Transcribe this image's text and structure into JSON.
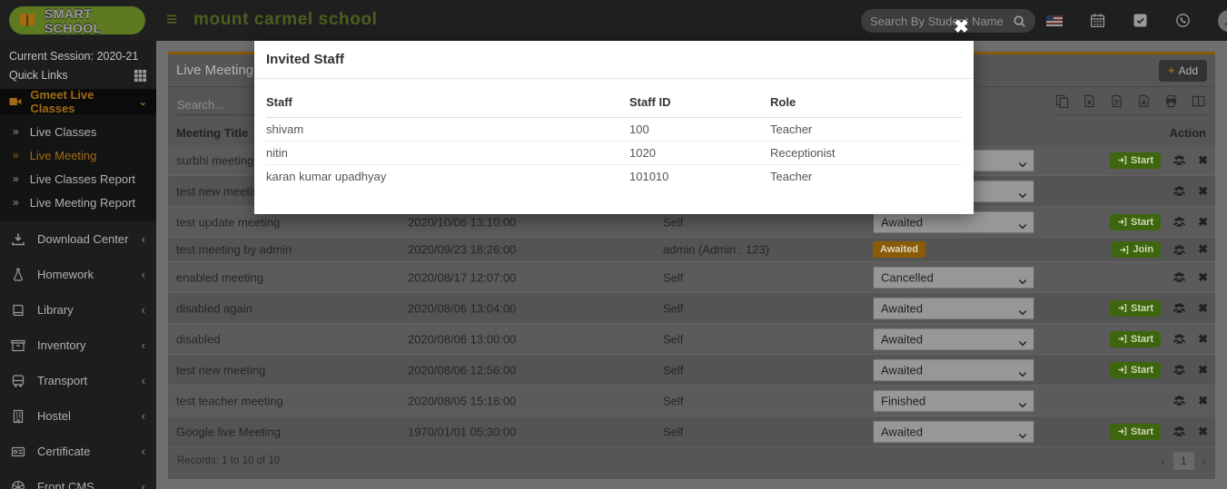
{
  "header": {
    "logo_text": "SMART SCHOOL",
    "school_name": "mount carmel school",
    "search_placeholder": "Search By Student Name",
    "icons": [
      "us-flag-icon",
      "calendar-icon",
      "tasks-icon",
      "whatsapp-icon",
      "user-avatar-icon"
    ]
  },
  "sidebar": {
    "session_label": "Current Session: 2020-21",
    "quick_links_label": "Quick Links",
    "active_menu": {
      "label": "Gmeet Live Classes",
      "icon": "video-icon",
      "children": [
        {
          "label": "Live Classes",
          "active": false
        },
        {
          "label": "Live Meeting",
          "active": true
        },
        {
          "label": "Live Classes Report",
          "active": false
        },
        {
          "label": "Live Meeting Report",
          "active": false
        }
      ]
    },
    "menu": [
      {
        "label": "Download Center",
        "icon": "download-icon"
      },
      {
        "label": "Homework",
        "icon": "flask-icon"
      },
      {
        "label": "Library",
        "icon": "book-icon"
      },
      {
        "label": "Inventory",
        "icon": "inventory-icon"
      },
      {
        "label": "Transport",
        "icon": "bus-icon"
      },
      {
        "label": "Hostel",
        "icon": "building-icon"
      },
      {
        "label": "Certificate",
        "icon": "certificate-icon"
      },
      {
        "label": "Front CMS",
        "icon": "globe-icon"
      }
    ]
  },
  "page": {
    "title": "Live Meeting",
    "add_button_label": "Add",
    "search_placeholder": "Search...",
    "export_icons": [
      "copy-icon",
      "excel-icon",
      "csv-icon",
      "pdf-icon",
      "print-icon",
      "columns-icon"
    ],
    "table": {
      "header_title": "Meeting Title",
      "header_action": "Action",
      "rows": [
        {
          "title": "surbhi meeting",
          "date": "",
          "created_by": "",
          "status": "",
          "status_kind": "select",
          "buttons": [
            "start",
            "users",
            "close"
          ],
          "start_label": "Start"
        },
        {
          "title": "test new meeting",
          "date": "",
          "created_by": "",
          "status": "",
          "status_kind": "select",
          "buttons": [
            "users",
            "close"
          ],
          "start_label": ""
        },
        {
          "title": "test update meeting",
          "date": "2020/10/06 13:10:00",
          "created_by": "Self",
          "status": "Awaited",
          "status_kind": "select",
          "buttons": [
            "start",
            "users",
            "close"
          ],
          "start_label": "Start"
        },
        {
          "title": "test meeting by admin",
          "date": "2020/09/23 18:26:00",
          "created_by": "admin (Admin : 123)",
          "status": "Awaited",
          "status_kind": "badge",
          "buttons": [
            "start",
            "users",
            "close"
          ],
          "start_label": "Join"
        },
        {
          "title": "enabled meeting",
          "date": "2020/08/17 12:07:00",
          "created_by": "Self",
          "status": "Cancelled",
          "status_kind": "select",
          "buttons": [
            "users",
            "close"
          ],
          "start_label": ""
        },
        {
          "title": "disabled again",
          "date": "2020/08/06 13:04:00",
          "created_by": "Self",
          "status": "Awaited",
          "status_kind": "select",
          "buttons": [
            "start",
            "users",
            "close"
          ],
          "start_label": "Start"
        },
        {
          "title": "disabled",
          "date": "2020/08/06 13:00:00",
          "created_by": "Self",
          "status": "Awaited",
          "status_kind": "select",
          "buttons": [
            "start",
            "users",
            "close"
          ],
          "start_label": "Start"
        },
        {
          "title": "test new meeting",
          "date": "2020/08/06 12:56:00",
          "created_by": "Self",
          "status": "Awaited",
          "status_kind": "select",
          "buttons": [
            "start",
            "users",
            "close"
          ],
          "start_label": "Start"
        },
        {
          "title": "test teacher meeting",
          "date": "2020/08/05 15:16:00",
          "created_by": "Self",
          "status": "Finished",
          "status_kind": "select",
          "buttons": [
            "users",
            "close"
          ],
          "start_label": ""
        },
        {
          "title": "Google live Meeting",
          "date": "1970/01/01 05:30:00",
          "created_by": "Self",
          "status": "Awaited",
          "status_kind": "select",
          "buttons": [
            "start",
            "users",
            "close"
          ],
          "start_label": "Start"
        }
      ]
    },
    "records_text": "Records: 1 to 10 of 10",
    "pagination": {
      "prev": "‹",
      "page": "1",
      "next": "›"
    }
  },
  "modal": {
    "title": "Invited Staff",
    "close_glyph": "✖",
    "headers": [
      "Staff",
      "Staff ID",
      "Role"
    ],
    "rows": [
      {
        "staff": "shivam",
        "staff_id": "100",
        "role": "Teacher"
      },
      {
        "staff": "nitin",
        "staff_id": "1020",
        "role": "Receptionist"
      },
      {
        "staff": "karan kumar upadhyay",
        "staff_id": "101010",
        "role": "Teacher"
      }
    ]
  },
  "colors": {
    "accent_orange": "#a06a15",
    "panel_top_border": "#8a5a06",
    "button_green": "#3e660f",
    "badge_orange": "#8a5a06",
    "logo_green": "#5e7a20",
    "topbar": "#1f1f1f",
    "panel_bg": "#565656",
    "modal_bg": "#ffffff"
  }
}
